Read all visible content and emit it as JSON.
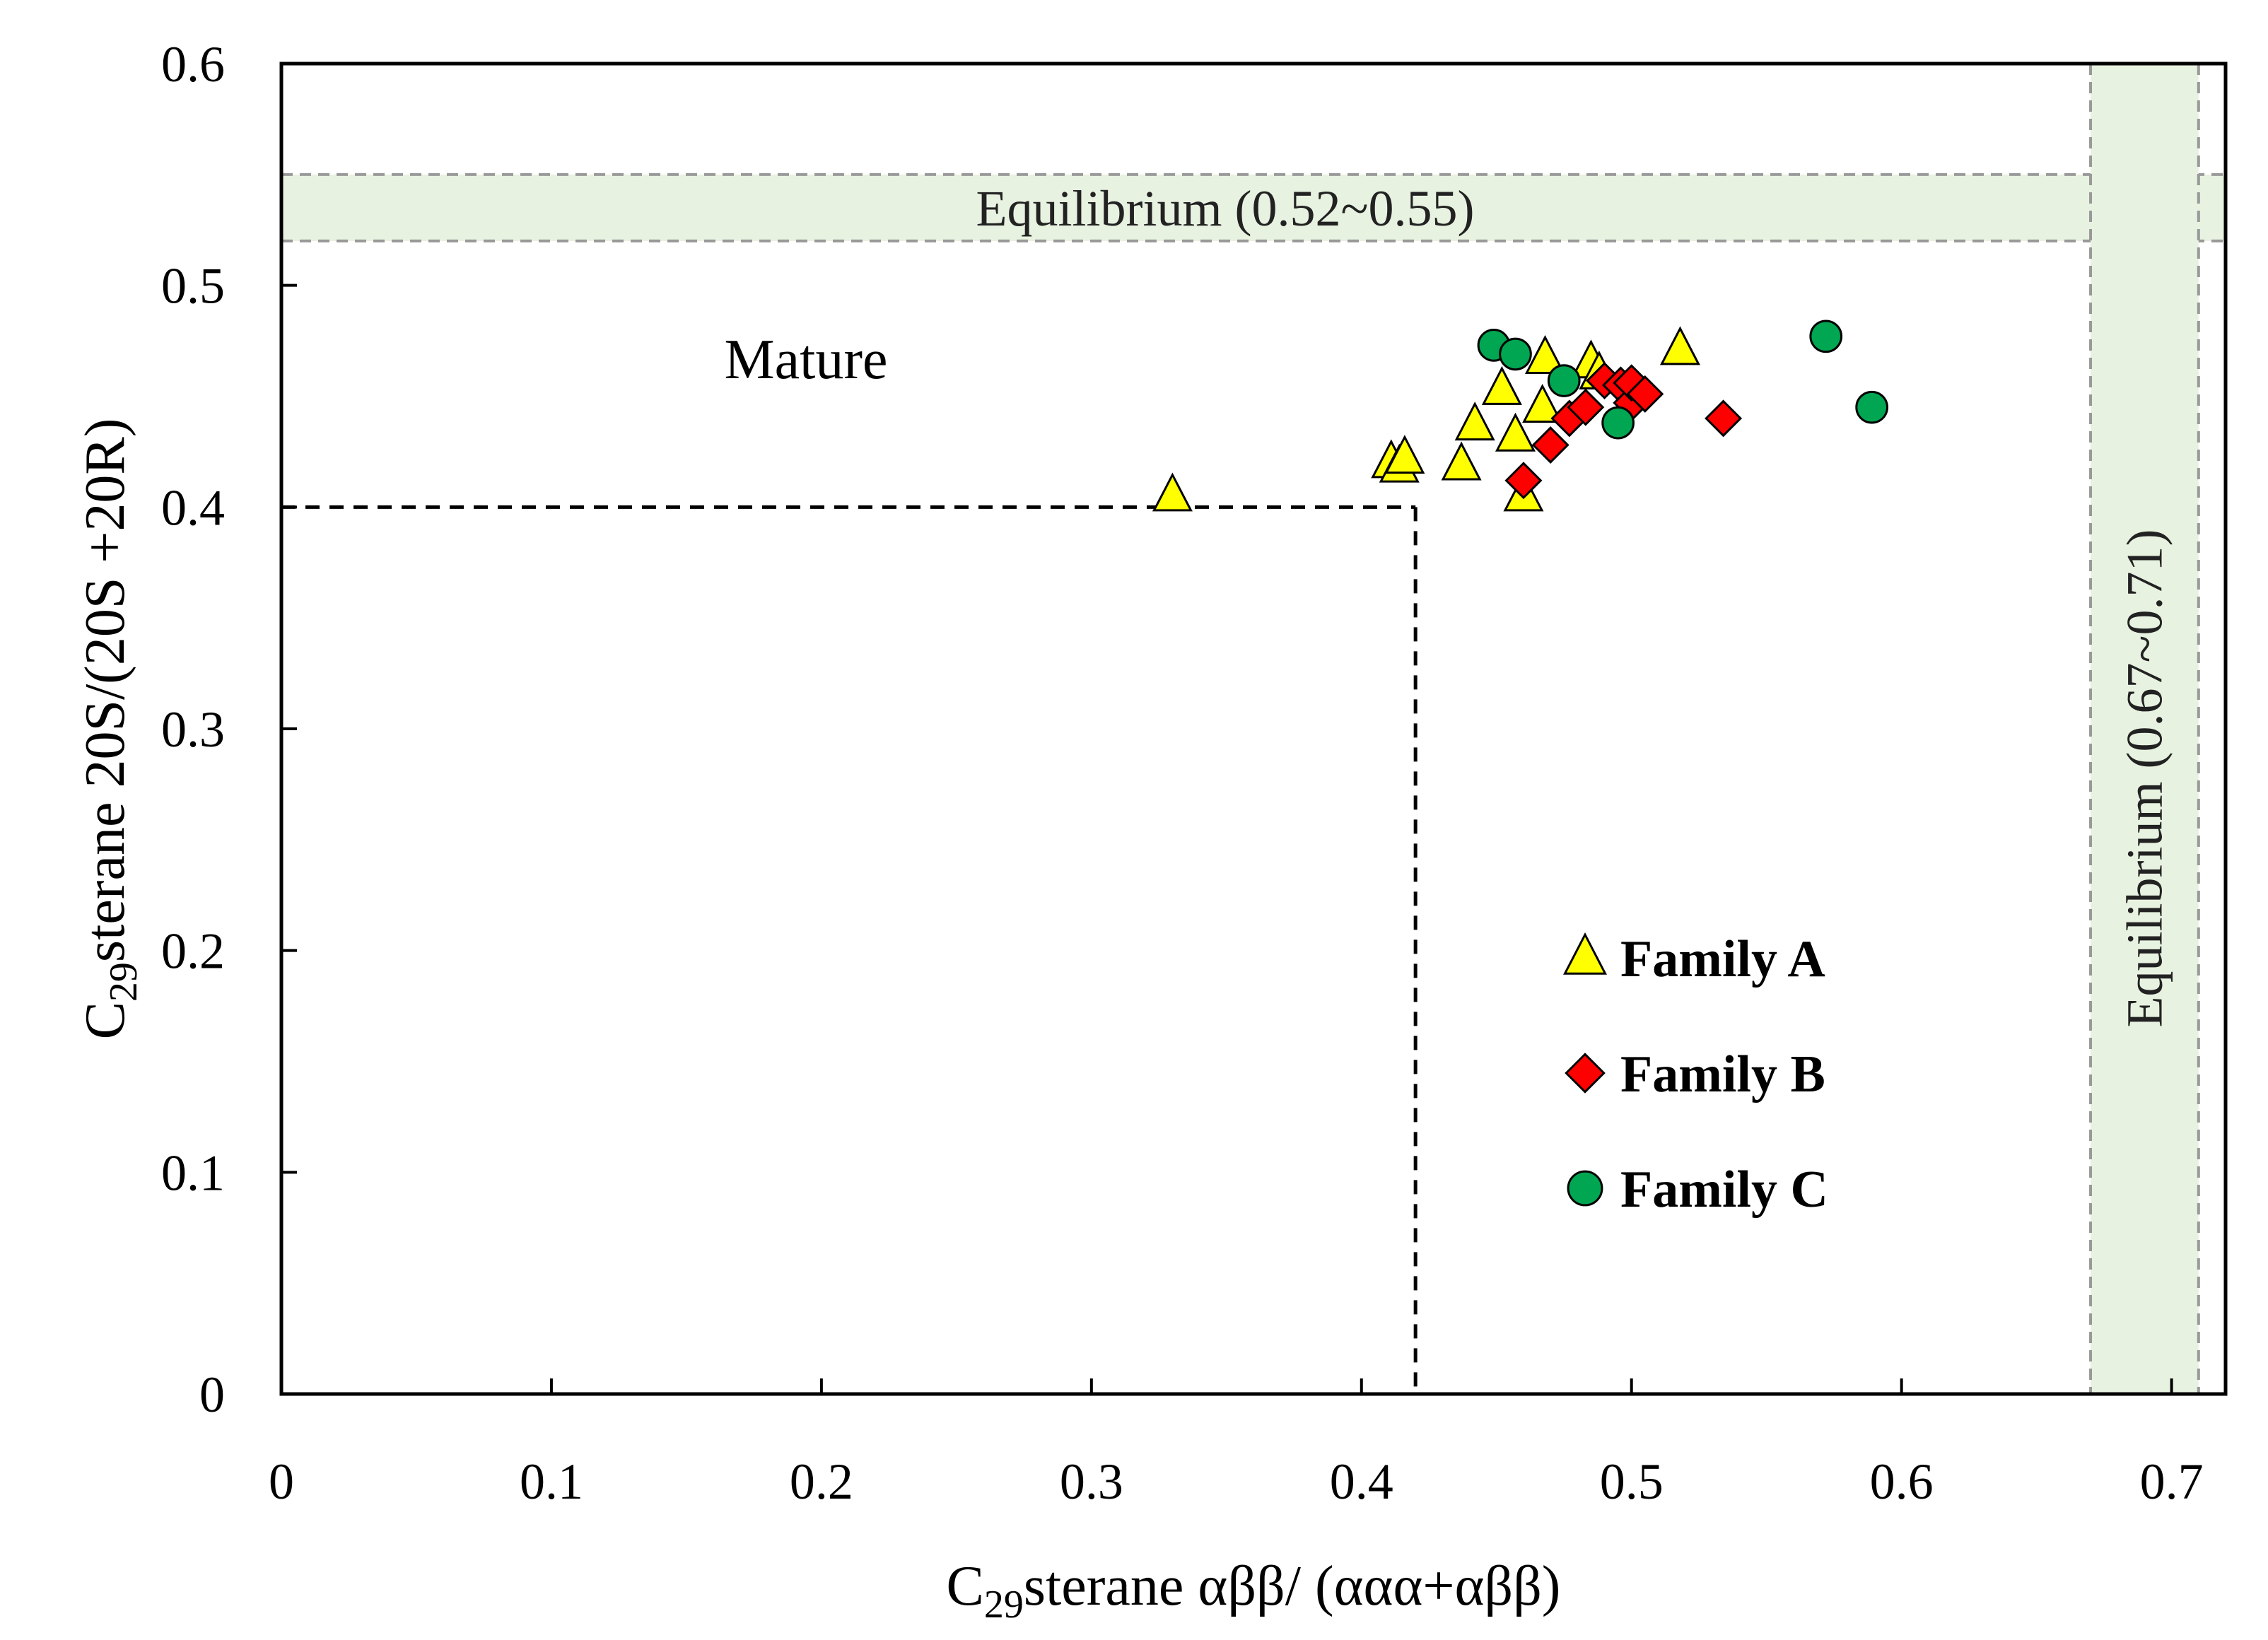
{
  "chart_data": {
    "type": "scatter",
    "title": "",
    "xlabel_main": "C",
    "xlabel_sub": "29",
    "xlabel_rest": "sterane αββ/ (ααα+αββ)",
    "ylabel_main": "C",
    "ylabel_sub": "29",
    "ylabel_rest": "sterane 20S/(20S +20R)",
    "xlim": [
      0,
      0.72
    ],
    "ylim": [
      0,
      0.6
    ],
    "xticks": [
      0,
      0.1,
      0.2,
      0.3,
      0.4,
      0.5,
      0.6,
      0.7
    ],
    "xtick_labels": [
      "0",
      "0.1",
      "0.2",
      "0.3",
      "0.4",
      "0.5",
      "0.6",
      "0.7"
    ],
    "yticks": [
      0,
      0.1,
      0.2,
      0.3,
      0.4,
      0.5,
      0.6
    ],
    "ytick_labels": [
      "0",
      "0.1",
      "0.2",
      "0.3",
      "0.4",
      "0.5",
      "0.6"
    ],
    "grid": false,
    "legend_position": "lower-right",
    "bands": [
      {
        "orientation": "horizontal",
        "from": 0.52,
        "to": 0.55,
        "label": "Equilibrium (0.52~0.55)",
        "color": "#e8f2e1"
      },
      {
        "orientation": "vertical",
        "from": 0.67,
        "to": 0.71,
        "label": "Equilibrium (0.67~0.71)",
        "color": "#e8f2e1"
      }
    ],
    "thresholds": {
      "x": 0.42,
      "y": 0.4
    },
    "region_label": "Mature",
    "series": [
      {
        "name": "Family A",
        "marker": "triangle",
        "color": "#ffff00",
        "points": [
          [
            0.33,
            0.405
          ],
          [
            0.411,
            0.42
          ],
          [
            0.414,
            0.418
          ],
          [
            0.416,
            0.422
          ],
          [
            0.437,
            0.419
          ],
          [
            0.442,
            0.437
          ],
          [
            0.452,
            0.453
          ],
          [
            0.457,
            0.432
          ],
          [
            0.46,
            0.405
          ],
          [
            0.467,
            0.445
          ],
          [
            0.468,
            0.467
          ],
          [
            0.485,
            0.465
          ],
          [
            0.488,
            0.46
          ],
          [
            0.518,
            0.471
          ]
        ]
      },
      {
        "name": "Family B",
        "marker": "diamond",
        "color": "#ff0000",
        "points": [
          [
            0.46,
            0.412
          ],
          [
            0.47,
            0.428
          ],
          [
            0.477,
            0.44
          ],
          [
            0.483,
            0.445
          ],
          [
            0.49,
            0.457
          ],
          [
            0.496,
            0.455
          ],
          [
            0.5,
            0.447
          ],
          [
            0.5,
            0.456
          ],
          [
            0.505,
            0.451
          ],
          [
            0.534,
            0.44
          ]
        ]
      },
      {
        "name": "Family C",
        "marker": "circle",
        "color": "#00a651",
        "points": [
          [
            0.449,
            0.473
          ],
          [
            0.457,
            0.469
          ],
          [
            0.475,
            0.457
          ],
          [
            0.495,
            0.438
          ],
          [
            0.572,
            0.477
          ],
          [
            0.589,
            0.445
          ]
        ]
      }
    ]
  }
}
